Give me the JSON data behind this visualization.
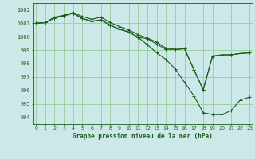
{
  "background_color": "#cce8e8",
  "grid_color": "#99cc99",
  "line_color": "#1a5c1a",
  "xlabel": "Graphe pression niveau de la mer (hPa)",
  "ylim": [
    993.5,
    1002.5
  ],
  "xlim": [
    -0.3,
    23.3
  ],
  "yticks": [
    994,
    995,
    996,
    997,
    998,
    999,
    1000,
    1001,
    1002
  ],
  "xticks": [
    0,
    1,
    2,
    3,
    4,
    5,
    6,
    7,
    8,
    9,
    10,
    11,
    12,
    13,
    14,
    15,
    16,
    17,
    18,
    19,
    20,
    21,
    22,
    23
  ],
  "line1": [
    1001.0,
    1001.05,
    1001.4,
    1001.55,
    1001.75,
    1001.35,
    1001.15,
    1001.25,
    1000.85,
    1000.55,
    1000.35,
    999.95,
    999.4,
    998.8,
    998.3,
    997.6,
    996.6,
    995.6,
    994.35,
    994.2,
    994.2,
    994.5,
    995.3,
    995.5
  ],
  "line2": [
    1001.0,
    1001.05,
    1001.4,
    1001.55,
    1001.75,
    1001.35,
    1001.15,
    1001.25,
    1000.85,
    1000.55,
    1000.35,
    999.95,
    999.85,
    999.45,
    999.05,
    999.05,
    999.1,
    997.55,
    996.05,
    998.55,
    998.65,
    998.65,
    998.75,
    998.8
  ],
  "line3": [
    1001.0,
    1001.05,
    1001.45,
    1001.6,
    1001.8,
    1001.5,
    1001.3,
    1001.45,
    1001.05,
    1000.75,
    1000.5,
    1000.15,
    999.9,
    999.6,
    999.15,
    999.05,
    999.1,
    997.55,
    996.05,
    998.55,
    998.65,
    998.65,
    998.75,
    998.8
  ]
}
